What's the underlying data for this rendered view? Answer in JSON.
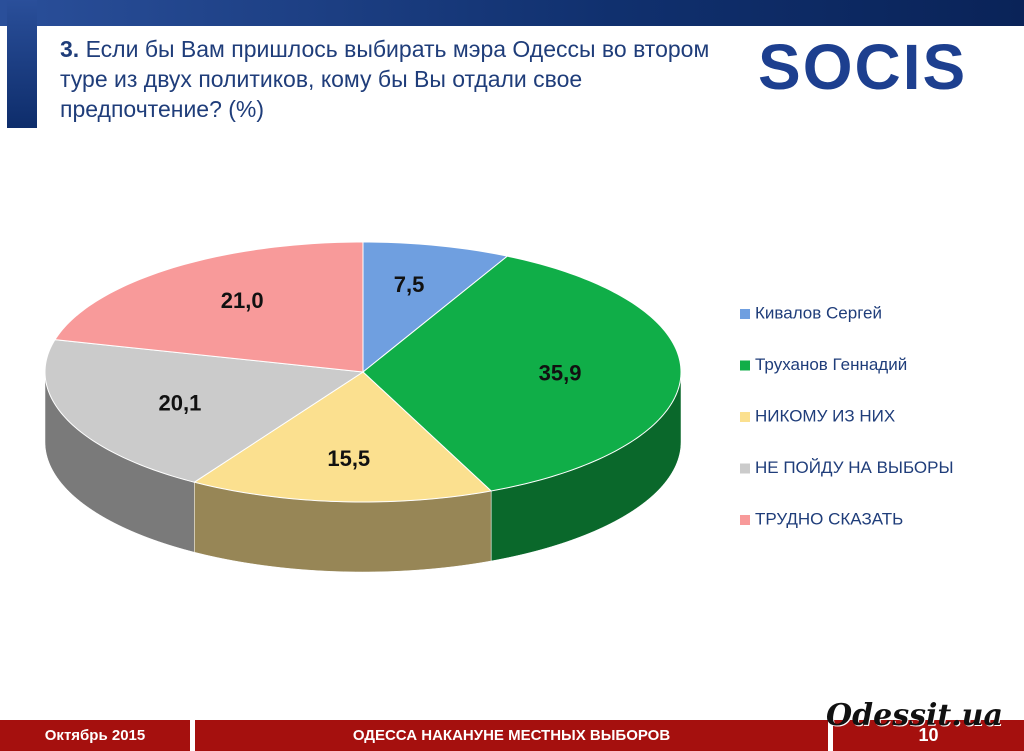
{
  "header": {
    "number": "3.",
    "title": "Если бы Вам пришлось выбирать мэра Одессы во втором туре из двух политиков, кому бы Вы отдали свое предпочтение? (%)",
    "logo": "SOCIS"
  },
  "chart_data": {
    "type": "pie3d",
    "categories": [
      "Кивалов Сергей",
      "Труханов Геннадий",
      "НИКОМУ ИЗ НИХ",
      "НЕ ПОЙДУ НА ВЫБОРЫ",
      "ТРУДНО СКАЗАТЬ"
    ],
    "values": [
      7.5,
      35.9,
      15.5,
      20.1,
      21.0
    ],
    "value_labels": [
      "7,5",
      "35,9",
      "15,5",
      "20,1",
      "21,0"
    ],
    "colors": [
      "#6f9fe0",
      "#10ae48",
      "#fbe08f",
      "#cbcbcb",
      "#f89a9a"
    ],
    "legend": "right"
  },
  "footer": {
    "date": "Октябрь 2015",
    "title": "ОДЕССА НАКАНУНЕ МЕСТНЫХ ВЫБОРОВ",
    "page": "10",
    "watermark": "Odessit.ua"
  }
}
